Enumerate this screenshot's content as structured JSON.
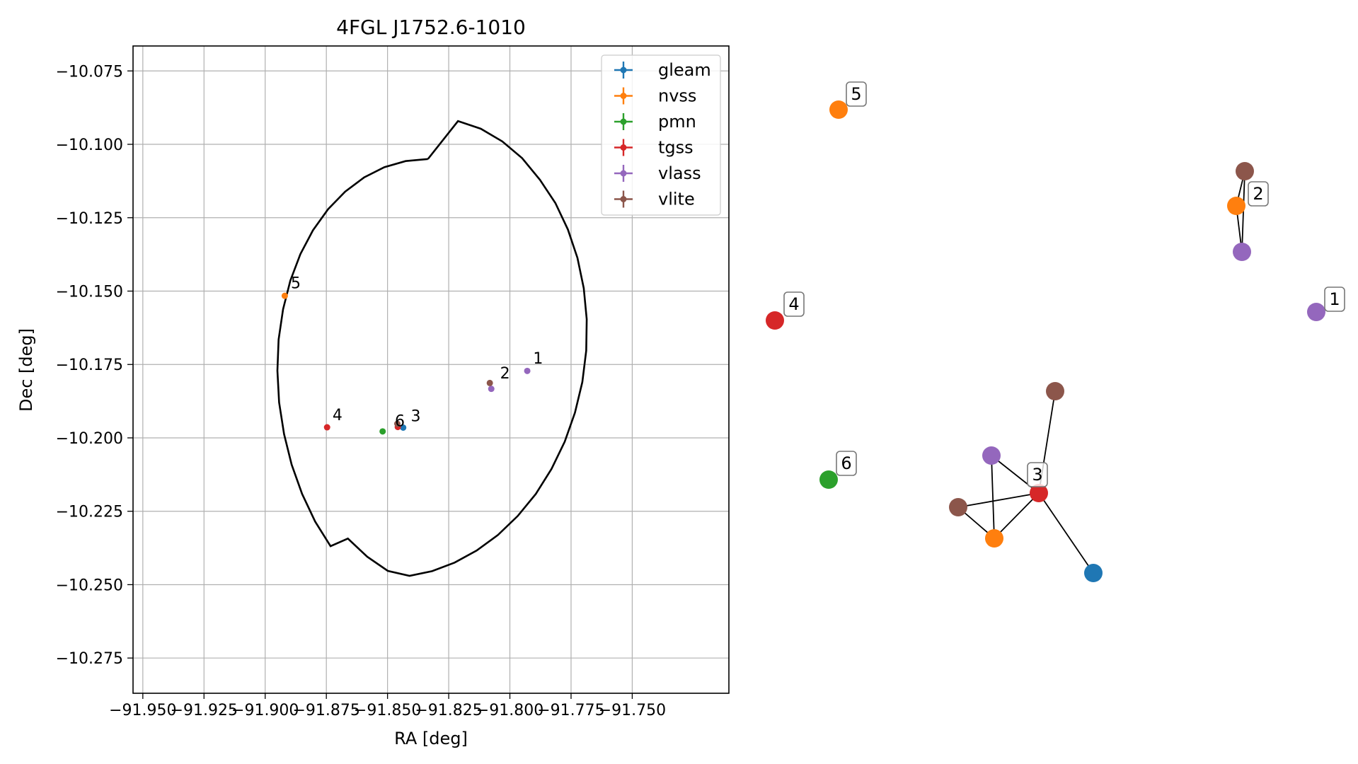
{
  "chart_data": [
    {
      "type": "scatter",
      "title": "4FGL J1752.6-1010",
      "xlabel": "RA [deg]",
      "ylabel": "Dec [deg]",
      "xlim": [
        -91.954,
        -91.7105
      ],
      "ylim": [
        -10.287,
        -10.0665
      ],
      "xticks": [
        -91.95,
        -91.925,
        -91.9,
        -91.875,
        -91.85,
        -91.825,
        -91.8,
        -91.775,
        -91.75
      ],
      "xtick_labels": [
        "−91.950",
        "−91.925",
        "−91.900",
        "−91.875",
        "−91.850",
        "−91.825",
        "−91.800",
        "−91.775",
        "−91.750"
      ],
      "yticks": [
        -10.075,
        -10.1,
        -10.125,
        -10.15,
        -10.175,
        -10.2,
        -10.225,
        -10.25,
        -10.275
      ],
      "ytick_labels": [
        "−10.075",
        "−10.100",
        "−10.125",
        "−10.150",
        "−10.175",
        "−10.200",
        "−10.225",
        "−10.250",
        "−10.275"
      ],
      "grid": true,
      "legend_position": "top-right",
      "ellipse": {
        "points": [
          [
            -91.8335,
            -10.105
          ],
          [
            -91.8426,
            -10.1057
          ],
          [
            -91.8513,
            -10.1078
          ],
          [
            -91.8596,
            -10.1113
          ],
          [
            -91.8673,
            -10.1161
          ],
          [
            -91.8743,
            -10.1221
          ],
          [
            -91.8805,
            -10.1293
          ],
          [
            -91.8856,
            -10.1374
          ],
          [
            -91.8897,
            -10.1464
          ],
          [
            -91.8927,
            -10.1562
          ],
          [
            -91.8945,
            -10.1665
          ],
          [
            -91.895,
            -10.1771
          ],
          [
            -91.8943,
            -10.1879
          ],
          [
            -91.8923,
            -10.1987
          ],
          [
            -91.8892,
            -10.2091
          ],
          [
            -91.8849,
            -10.2191
          ],
          [
            -91.8796,
            -10.2285
          ],
          [
            -91.8733,
            -10.2369
          ],
          [
            -91.8662,
            -10.2343
          ],
          [
            -91.8583,
            -10.2405
          ],
          [
            -91.8499,
            -10.2453
          ],
          [
            -91.841,
            -10.247
          ],
          [
            -91.8318,
            -10.2454
          ],
          [
            -91.8226,
            -10.2425
          ],
          [
            -91.8136,
            -10.2384
          ],
          [
            -91.8049,
            -10.2331
          ],
          [
            -91.7968,
            -10.2266
          ],
          [
            -91.7894,
            -10.2191
          ],
          [
            -91.783,
            -10.2106
          ],
          [
            -91.7776,
            -10.2013
          ],
          [
            -91.7734,
            -10.1914
          ],
          [
            -91.7704,
            -10.181
          ],
          [
            -91.7688,
            -10.1703
          ],
          [
            -91.7686,
            -10.1596
          ],
          [
            -91.7698,
            -10.149
          ],
          [
            -91.7724,
            -10.1387
          ],
          [
            -91.7763,
            -10.129
          ],
          [
            -91.7814,
            -10.12
          ],
          [
            -91.7877,
            -10.1121
          ],
          [
            -91.795,
            -10.1047
          ],
          [
            -91.8031,
            -10.099
          ],
          [
            -91.8119,
            -10.0947
          ],
          [
            -91.8212,
            -10.0921
          ],
          [
            -91.8335,
            -10.105
          ]
        ]
      },
      "series": [
        {
          "name": "gleam",
          "color": "#1f77b4",
          "points": [
            {
              "x": -91.8436,
              "y": -10.1965
            }
          ]
        },
        {
          "name": "nvss",
          "color": "#ff7f0e",
          "points": [
            {
              "x": -91.892,
              "y": -10.1516
            }
          ]
        },
        {
          "name": "pmn",
          "color": "#2ca02c",
          "points": [
            {
              "x": -91.852,
              "y": -10.1978
            }
          ]
        },
        {
          "name": "tgss",
          "color": "#d62728",
          "points": [
            {
              "x": -91.8747,
              "y": -10.1964
            },
            {
              "x": -91.8458,
              "y": -10.1963
            }
          ]
        },
        {
          "name": "vlass",
          "color": "#9467bd",
          "points": [
            {
              "x": -91.7929,
              "y": -10.1772
            },
            {
              "x": -91.8076,
              "y": -10.1833
            }
          ]
        },
        {
          "name": "vlite",
          "color": "#8c564b",
          "points": [
            {
              "x": -91.8082,
              "y": -10.1813
            },
            {
              "x": -91.846,
              "y": -10.1952
            }
          ]
        }
      ],
      "annotations": [
        {
          "text": "1",
          "x": -91.7905,
          "y": -10.1747
        },
        {
          "text": "2",
          "x": -91.804,
          "y": -10.1798
        },
        {
          "text": "3",
          "x": -91.8405,
          "y": -10.1943
        },
        {
          "text": "4",
          "x": -91.8725,
          "y": -10.194
        },
        {
          "text": "5",
          "x": -91.8895,
          "y": -10.149
        },
        {
          "text": "6",
          "x": -91.847,
          "y": -10.196
        }
      ]
    },
    {
      "type": "network",
      "nodes": [
        {
          "id": "n1",
          "color": "#9467bd",
          "label": "1"
        },
        {
          "id": "n2",
          "color": "#ff7f0e",
          "label": "2"
        },
        {
          "id": "n2a",
          "color": "#8c564b",
          "label": ""
        },
        {
          "id": "n2b",
          "color": "#9467bd",
          "label": ""
        },
        {
          "id": "n3",
          "color": "#d62728",
          "label": "3"
        },
        {
          "id": "n3a",
          "color": "#8c564b",
          "label": ""
        },
        {
          "id": "n3b",
          "color": "#9467bd",
          "label": ""
        },
        {
          "id": "n3c",
          "color": "#8c564b",
          "label": ""
        },
        {
          "id": "n3d",
          "color": "#ff7f0e",
          "label": ""
        },
        {
          "id": "n3e",
          "color": "#1f77b4",
          "label": ""
        },
        {
          "id": "n4",
          "color": "#d62728",
          "label": "4"
        },
        {
          "id": "n5",
          "color": "#ff7f0e",
          "label": "5"
        },
        {
          "id": "n6",
          "color": "#2ca02c",
          "label": "6"
        }
      ],
      "edges": [
        [
          "n2a",
          "n2"
        ],
        [
          "n2a",
          "n2b"
        ],
        [
          "n2",
          "n2b"
        ],
        [
          "n3a",
          "n3"
        ],
        [
          "n3b",
          "n3"
        ],
        [
          "n3b",
          "n3d"
        ],
        [
          "n3c",
          "n3"
        ],
        [
          "n3c",
          "n3d"
        ],
        [
          "n3d",
          "n3"
        ],
        [
          "n3e",
          "n3"
        ]
      ]
    }
  ]
}
